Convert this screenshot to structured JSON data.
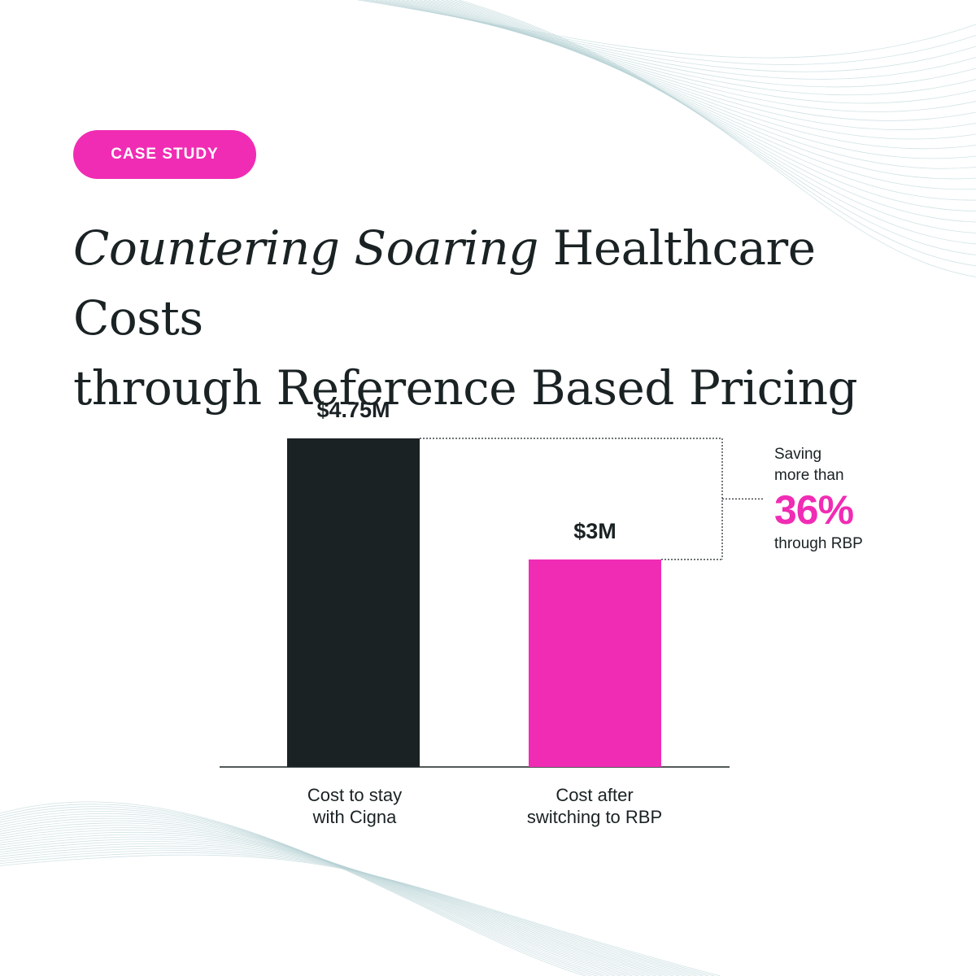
{
  "badge": {
    "label": "CASE STUDY"
  },
  "title": {
    "italic": "Countering Soaring",
    "rest_line1": " Healthcare Costs",
    "line2": "through Reference Based Pricing"
  },
  "chart_data": {
    "type": "bar",
    "categories": [
      "Cost to stay with Cigna",
      "Cost after switching to RBP"
    ],
    "category_lines": [
      [
        "Cost to stay",
        "with Cigna"
      ],
      [
        "Cost after",
        "switching to RBP"
      ]
    ],
    "values": [
      4.75,
      3.0
    ],
    "value_labels": [
      "$4.75M",
      "$3M"
    ],
    "colors": [
      "#1a2224",
      "#f02cb4"
    ],
    "ylim": [
      0,
      4.75
    ],
    "title": "",
    "xlabel": "",
    "ylabel": ""
  },
  "callout": {
    "line1": "Saving",
    "line2": "more than",
    "percent": "36%",
    "line3": "through RBP"
  },
  "colors": {
    "accent": "#f02cb4",
    "dark": "#1a2224",
    "wave": "#b9d3d6"
  }
}
